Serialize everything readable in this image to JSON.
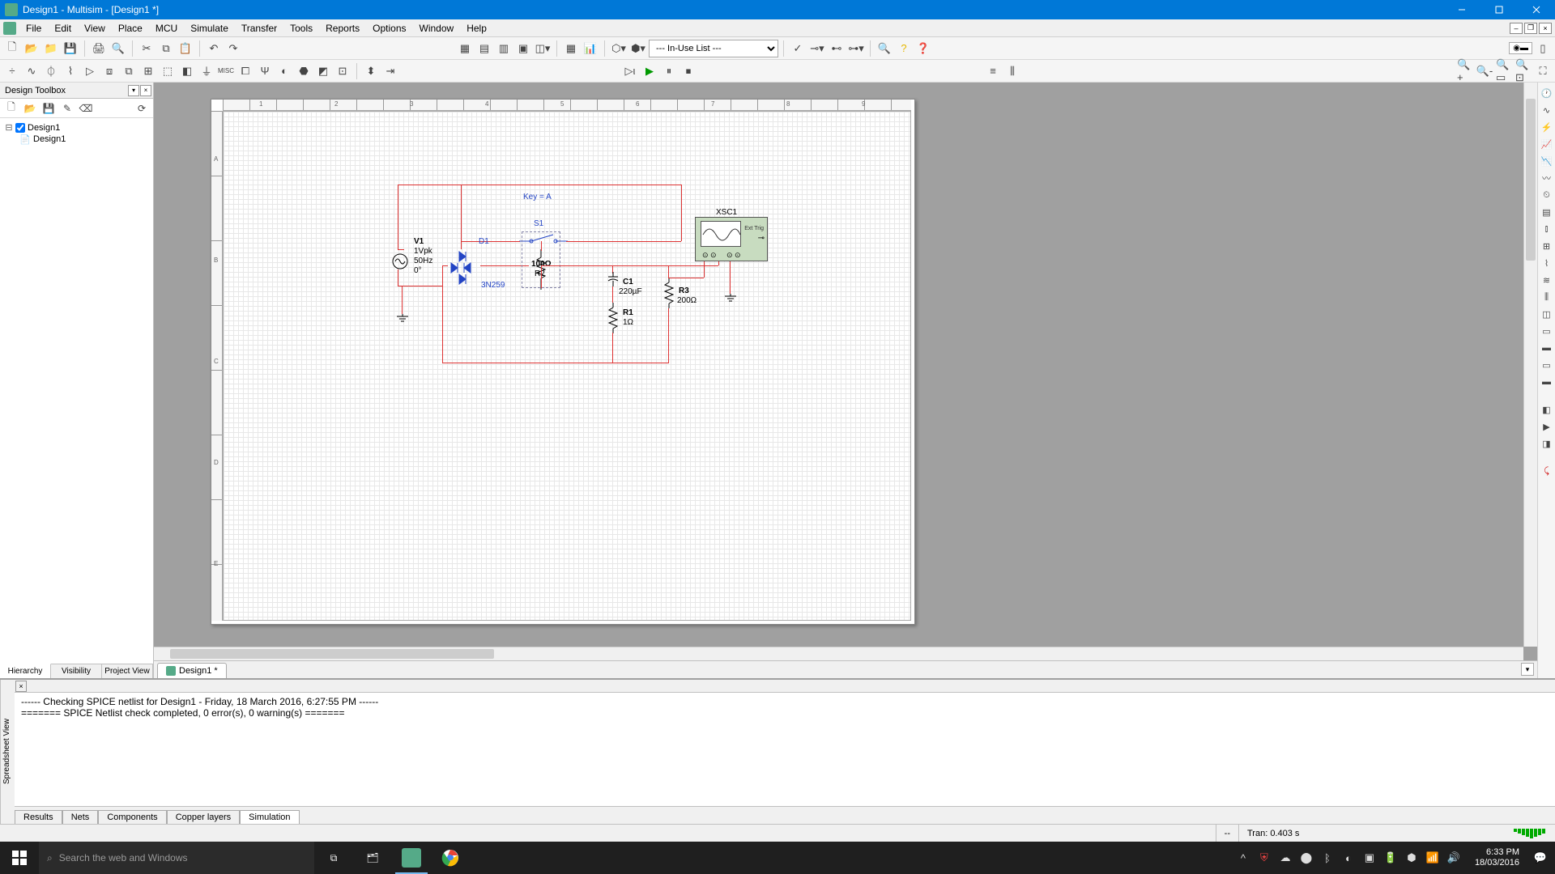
{
  "titlebar": {
    "title": "Design1 - Multisim - [Design1 *]"
  },
  "menu": {
    "items": [
      "File",
      "Edit",
      "View",
      "Place",
      "MCU",
      "Simulate",
      "Transfer",
      "Tools",
      "Reports",
      "Options",
      "Window",
      "Help"
    ]
  },
  "combo": {
    "value": "--- In-Use List ---"
  },
  "leftpanel": {
    "title": "Design Toolbox",
    "tree": {
      "root": "Design1",
      "child": "Design1"
    },
    "tabs": [
      "Hierarchy",
      "Visibility",
      "Project View"
    ],
    "active_tab": 0
  },
  "doctab": {
    "label": "Design1 *"
  },
  "circuit": {
    "key_label": "Key = A",
    "S1": "S1",
    "V1": {
      "name": "V1",
      "l1": "1Vpk",
      "l2": "50Hz",
      "l3": "0°"
    },
    "D1": {
      "name": "D1",
      "model": "3N259"
    },
    "R2": {
      "val": "100Ω",
      "name": "R2"
    },
    "C1": {
      "name": "C1",
      "val": "220µF"
    },
    "R1": {
      "name": "R1",
      "val": "1Ω"
    },
    "R3": {
      "name": "R3",
      "val": "200Ω"
    },
    "XSC1": "XSC1",
    "scope_ext": "Ext Trig"
  },
  "output": {
    "side": "Spreadsheet View",
    "lines": [
      "------ Checking SPICE netlist for Design1 - Friday, 18 March 2016, 6:27:55 PM ------",
      "======= SPICE Netlist check completed, 0 error(s), 0 warning(s) ======="
    ],
    "tabs": [
      "Results",
      "Nets",
      "Components",
      "Copper layers",
      "Simulation"
    ],
    "active_tab": 4
  },
  "status": {
    "center": "--",
    "tran": "Tran: 0.403 s"
  },
  "taskbar": {
    "search_placeholder": "Search the web and Windows",
    "time": "6:33 PM",
    "date": "18/03/2016"
  },
  "ruler": {
    "top": [
      "1",
      "2",
      "3",
      "4",
      "5",
      "6",
      "7",
      "8",
      "9"
    ],
    "left": [
      "A",
      "B",
      "C",
      "D",
      "E"
    ]
  }
}
